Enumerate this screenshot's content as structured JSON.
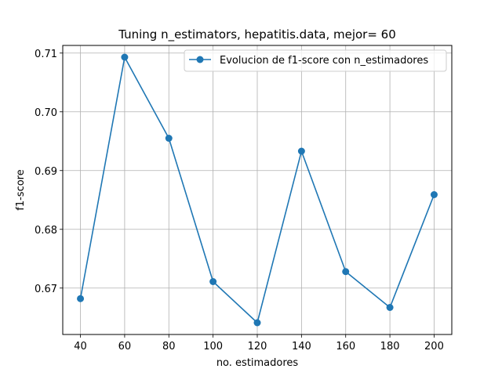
{
  "chart_data": {
    "type": "line",
    "title": "Tuning n_estimators, hepatitis.data, mejor= 60",
    "xlabel": "no. estimadores",
    "ylabel": "f1-score",
    "x": [
      40,
      60,
      80,
      100,
      120,
      140,
      160,
      180,
      200
    ],
    "series": [
      {
        "name": "Evolucion de f1-score con n_estimadores",
        "color": "#1f77b4",
        "marker": "circle",
        "values": [
          0.6682,
          0.7093,
          0.6955,
          0.6711,
          0.6641,
          0.6933,
          0.6728,
          0.6667,
          0.6859
        ]
      }
    ],
    "xlim": [
      32,
      208
    ],
    "ylim": [
      0.6621,
      0.7113
    ],
    "x_ticks": [
      "40",
      "60",
      "80",
      "100",
      "120",
      "140",
      "160",
      "180",
      "200"
    ],
    "y_ticks": [
      "0.67",
      "0.68",
      "0.69",
      "0.70",
      "0.71"
    ],
    "grid": true,
    "legend_position": "top-right"
  }
}
